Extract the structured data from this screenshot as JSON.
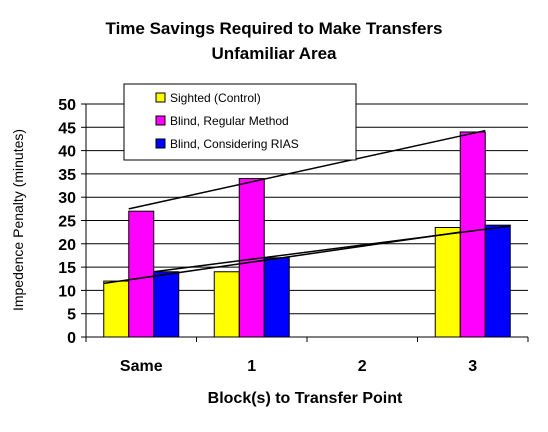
{
  "chart_data": {
    "type": "bar",
    "title": "Time Savings Required to Make Transfers",
    "subtitle": "Unfamiliar Area",
    "xlabel": "Block(s) to Transfer Point",
    "ylabel": "Impedence Penalty (minutes)",
    "categories": [
      "Same",
      "1",
      "2",
      "3"
    ],
    "ylim": [
      0,
      50
    ],
    "yticks": [
      0,
      5,
      10,
      15,
      20,
      25,
      30,
      35,
      40,
      45,
      50
    ],
    "grid": true,
    "legend_position": "top-center",
    "series": [
      {
        "name": "Sighted (Control)",
        "color": "#ffff00",
        "values": [
          12,
          14,
          null,
          23.5
        ]
      },
      {
        "name": "Blind, Regular Method",
        "color": "#ff00ff",
        "values": [
          27,
          34,
          null,
          44
        ]
      },
      {
        "name": "Blind, Considering RIAS",
        "color": "#0000ff",
        "values": [
          14,
          17,
          null,
          24
        ]
      }
    ],
    "trendlines": [
      {
        "series": "Blind, Regular Method",
        "from": {
          "x": "Same",
          "y": 27.5
        },
        "to": {
          "x": "3",
          "y": 44.3
        }
      },
      {
        "series": "Blind, Considering RIAS",
        "from": {
          "x": "Same",
          "y": 14
        },
        "to": {
          "x": "3",
          "y": 23.8
        }
      },
      {
        "series": "Sighted (Control)",
        "from": {
          "x": "Same",
          "y": 11.5
        },
        "to": {
          "x": "3",
          "y": 22.5
        }
      }
    ]
  }
}
